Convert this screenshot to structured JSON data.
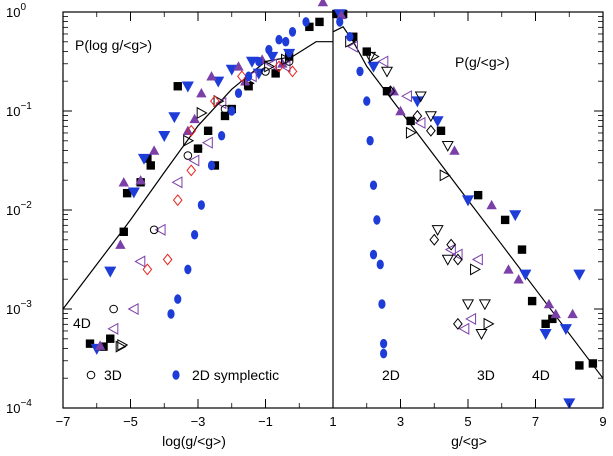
{
  "chart_data": {
    "type": "scatter",
    "panels": [
      {
        "id": "left",
        "label": "P(log g/<g>)",
        "xlabel": "log(g/<g>)",
        "xlim": [
          -7,
          1
        ],
        "xticks": [
          "−7",
          "−5",
          "−3",
          "−1",
          "1"
        ],
        "ylim_exp": [
          -4,
          0
        ],
        "yticks": [
          {
            "base": "10",
            "exp": "−4"
          },
          {
            "base": "10",
            "exp": "−3"
          },
          {
            "base": "10",
            "exp": "−2"
          },
          {
            "base": "10",
            "exp": "−1"
          },
          {
            "base": "10",
            "exp": "0"
          }
        ],
        "annotations": [
          "4D",
          "3D",
          "2D symplectic"
        ],
        "curve_log10": [
          [
            -7.0,
            -3.0
          ],
          [
            -6.0,
            -2.55
          ],
          [
            -5.0,
            -2.1
          ],
          [
            -4.0,
            -1.62
          ],
          [
            -3.0,
            -1.15
          ],
          [
            -2.0,
            -0.78
          ],
          [
            -1.0,
            -0.5
          ],
          [
            -0.2,
            -0.45
          ],
          [
            0.5,
            -0.3
          ],
          [
            1.0,
            -0.3
          ]
        ],
        "series": [
          {
            "marker": "square",
            "color": "#000000",
            "points": [
              [
                -6.2,
                -3.35
              ],
              [
                -5.8,
                -3.38
              ],
              [
                -5.6,
                -3.3
              ],
              [
                -5.2,
                -2.22
              ],
              [
                -5.1,
                -1.83
              ],
              [
                -4.7,
                -1.72
              ],
              [
                -4.5,
                -1.48
              ],
              [
                -4.4,
                -1.55
              ],
              [
                -3.6,
                -0.75
              ],
              [
                -3.0,
                -1.38
              ],
              [
                -2.7,
                -1.2
              ],
              [
                -2.5,
                -1.55
              ],
              [
                -2.2,
                -1.05
              ],
              [
                -2.0,
                -0.98
              ],
              [
                -1.5,
                -0.75
              ],
              [
                -0.7,
                -0.62
              ],
              [
                -0.3,
                -0.45
              ],
              [
                0.3,
                -0.15
              ],
              [
                0.6,
                -0.1
              ]
            ]
          },
          {
            "marker": "triangle-down",
            "color": "#1e3cd7",
            "points": [
              [
                -6.0,
                -3.4
              ],
              [
                -5.6,
                -2.62
              ],
              [
                -4.9,
                -1.82
              ],
              [
                -4.6,
                -1.48
              ],
              [
                -4.0,
                -1.25
              ],
              [
                -3.7,
                -1.06
              ],
              [
                -3.3,
                -0.75
              ],
              [
                -2.4,
                -0.7
              ],
              [
                -2.0,
                -0.58
              ],
              [
                -1.4,
                -0.5
              ],
              [
                -1.2,
                -0.62
              ],
              [
                -0.8,
                -0.45
              ],
              [
                -0.3,
                -0.42
              ]
            ]
          },
          {
            "marker": "triangle-up",
            "color": "#7b3fa8",
            "points": [
              [
                -5.9,
                -3.37
              ],
              [
                -5.3,
                -2.35
              ],
              [
                -5.2,
                -1.72
              ],
              [
                -4.7,
                -1.7
              ],
              [
                -4.3,
                -1.4
              ],
              [
                -3.3,
                -1.2
              ],
              [
                -3.1,
                -1.08
              ],
              [
                -2.9,
                -0.82
              ],
              [
                -2.6,
                -0.65
              ],
              [
                -1.8,
                -0.55
              ],
              [
                -1.6,
                -0.7
              ],
              [
                -1.1,
                -0.48
              ],
              [
                -0.5,
                -0.52
              ],
              [
                0.7,
                0.1
              ]
            ]
          },
          {
            "marker": "triangle-left",
            "color": "#7b3fa8",
            "points": [
              [
                -5.5,
                -3.2
              ],
              [
                -4.9,
                -3.0
              ],
              [
                -4.7,
                -2.52
              ],
              [
                -4.1,
                -2.2
              ],
              [
                -3.6,
                -1.72
              ],
              [
                -3.1,
                -1.5
              ],
              [
                -2.7,
                -1.32
              ],
              [
                -2.3,
                -0.92
              ],
              [
                -1.4,
                -0.65
              ],
              [
                -0.8,
                -0.53
              ],
              [
                -0.4,
                -0.55
              ]
            ]
          },
          {
            "marker": "triangle-right",
            "color": "#000000",
            "points": [
              [
                -5.3,
                -3.38
              ],
              [
                -3.3,
                -1.3
              ],
              [
                -2.9,
                -1.02
              ],
              [
                -2.4,
                -0.9
              ],
              [
                -1.5,
                -0.72
              ],
              [
                -0.9,
                -0.55
              ],
              [
                -0.4,
                -0.48
              ]
            ]
          },
          {
            "marker": "circle",
            "color": "#000000",
            "points": [
              [
                -5.5,
                -3.0
              ],
              [
                -4.3,
                -2.2
              ],
              [
                -3.3,
                -1.45
              ],
              [
                -3.0,
                -1.38
              ],
              [
                -2.2,
                -0.98
              ],
              [
                -1.0,
                -0.6
              ],
              [
                -0.3,
                -0.5
              ]
            ]
          },
          {
            "marker": "diamond",
            "color": "#e8241e",
            "points": [
              [
                -4.5,
                -2.6
              ],
              [
                -3.9,
                -2.5
              ],
              [
                -3.6,
                -1.9
              ],
              [
                -3.2,
                -1.6
              ],
              [
                -3.2,
                -1.2
              ],
              [
                -2.5,
                -0.9
              ],
              [
                -1.7,
                -0.65
              ],
              [
                -0.6,
                -0.55
              ],
              [
                -0.2,
                -0.6
              ]
            ]
          },
          {
            "marker": "circle-filled",
            "color": "#1e3cd7",
            "points": [
              [
                -3.8,
                -3.05
              ],
              [
                -3.6,
                -2.9
              ],
              [
                -3.3,
                -2.6
              ],
              [
                -3.1,
                -2.25
              ],
              [
                -2.9,
                -1.95
              ],
              [
                -2.6,
                -1.55
              ],
              [
                -2.3,
                -1.25
              ],
              [
                -2.0,
                -1.0
              ],
              [
                -1.8,
                -0.82
              ],
              [
                -1.5,
                -0.65
              ],
              [
                -1.2,
                -0.5
              ],
              [
                -0.9,
                -0.38
              ],
              [
                -0.6,
                -0.28
              ],
              [
                -0.4,
                -0.3
              ],
              [
                -0.2,
                -0.2
              ],
              [
                0.2,
                -0.1
              ]
            ]
          }
        ]
      },
      {
        "id": "right",
        "label": "P(g/<g>)",
        "xlabel": "g/<g>",
        "xlim": [
          1,
          9
        ],
        "xticks": [
          "1",
          "3",
          "5",
          "7",
          "9"
        ],
        "annotations": [
          "2D",
          "3D",
          "4D"
        ],
        "curve_log10": [
          [
            1.0,
            -0.2
          ],
          [
            1.3,
            -0.15
          ],
          [
            1.6,
            -0.3
          ],
          [
            2.0,
            -0.55
          ],
          [
            3.0,
            -1.0
          ],
          [
            4.0,
            -1.45
          ],
          [
            5.0,
            -1.9
          ],
          [
            6.0,
            -2.35
          ],
          [
            7.0,
            -2.8
          ],
          [
            8.0,
            -3.25
          ],
          [
            9.0,
            -3.7
          ]
        ],
        "series": [
          {
            "marker": "square",
            "color": "#000000",
            "points": [
              [
                1.1,
                -0.02
              ],
              [
                1.3,
                -0.02
              ],
              [
                1.6,
                -0.25
              ],
              [
                2.0,
                -0.4
              ],
              [
                2.6,
                -0.8
              ],
              [
                3.3,
                -1.1
              ],
              [
                4.2,
                -1.2
              ],
              [
                5.3,
                -1.85
              ],
              [
                6.1,
                -2.1
              ],
              [
                6.6,
                -2.4
              ],
              [
                6.9,
                -2.92
              ],
              [
                7.5,
                -3.1
              ],
              [
                8.3,
                -3.57
              ],
              [
                7.3,
                -3.15
              ],
              [
                8.7,
                -3.55
              ]
            ]
          },
          {
            "marker": "triangle-down",
            "color": "#1e3cd7",
            "points": [
              [
                1.2,
                -0.02
              ],
              [
                2.2,
                -0.55
              ],
              [
                3.5,
                -0.9
              ],
              [
                4.1,
                -1.1
              ],
              [
                5.0,
                -1.9
              ],
              [
                6.4,
                -2.05
              ],
              [
                6.7,
                -2.65
              ],
              [
                7.3,
                -3.25
              ],
              [
                8.3,
                -2.65
              ],
              [
                7.9,
                -3.2
              ],
              [
                8.0,
                -3.95
              ]
            ]
          },
          {
            "marker": "triangle-up",
            "color": "#7b3fa8",
            "points": [
              [
                1.25,
                -0.03
              ],
              [
                2.8,
                -0.8
              ],
              [
                3.0,
                -1.0
              ],
              [
                4.6,
                -1.4
              ],
              [
                5.7,
                -1.95
              ],
              [
                6.2,
                -2.6
              ],
              [
                6.5,
                -2.7
              ],
              [
                7.4,
                -2.95
              ],
              [
                7.6,
                -3.05
              ],
              [
                8.1,
                -3.05
              ]
            ]
          },
          {
            "marker": "triangle-left",
            "color": "#7b3fa8",
            "points": [
              [
                1.6,
                -0.35
              ],
              [
                2.5,
                -0.5
              ],
              [
                3.2,
                -0.85
              ],
              [
                3.6,
                -1.12
              ],
              [
                4.5,
                -2.4
              ],
              [
                4.7,
                -2.45
              ],
              [
                5.3,
                -2.5
              ],
              [
                5.1,
                -3.1
              ],
              [
                4.9,
                -3.2
              ]
            ]
          },
          {
            "marker": "triangle-right",
            "color": "#000000",
            "points": [
              [
                1.5,
                -0.3
              ],
              [
                2.2,
                -0.45
              ],
              [
                3.3,
                -1.22
              ],
              [
                4.3,
                -1.65
              ],
              [
                5.6,
                -3.15
              ],
              [
                5.2,
                -2.6
              ]
            ]
          },
          {
            "marker": "triangle-down",
            "color": "#000000",
            "points": [
              [
                2.1,
                -0.45
              ],
              [
                2.6,
                -0.6
              ],
              [
                3.6,
                -0.85
              ],
              [
                3.9,
                -1.05
              ],
              [
                4.4,
                -1.35
              ],
              [
                4.1,
                -2.2
              ],
              [
                4.4,
                -2.5
              ],
              [
                5.0,
                -2.95
              ],
              [
                5.5,
                -2.95
              ],
              [
                5.4,
                -3.25
              ]
            ]
          },
          {
            "marker": "diamond",
            "color": "#000000",
            "points": [
              [
                2.7,
                -0.8
              ],
              [
                3.5,
                -1.05
              ],
              [
                3.9,
                -1.2
              ],
              [
                4.0,
                -2.3
              ],
              [
                4.5,
                -2.35
              ],
              [
                4.7,
                -2.5
              ],
              [
                4.7,
                -3.15
              ]
            ]
          },
          {
            "marker": "circle-filled",
            "color": "#1e3cd7",
            "points": [
              [
                1.2,
                -0.1
              ],
              [
                1.5,
                -0.25
              ],
              [
                1.8,
                -0.6
              ],
              [
                2.0,
                -0.9
              ],
              [
                2.1,
                -1.3
              ],
              [
                2.2,
                -1.75
              ],
              [
                2.3,
                -2.1
              ],
              [
                2.2,
                -2.45
              ],
              [
                2.4,
                -2.55
              ],
              [
                2.45,
                -2.95
              ],
              [
                2.5,
                -3.35
              ],
              [
                2.5,
                -3.45
              ]
            ]
          }
        ]
      }
    ]
  }
}
